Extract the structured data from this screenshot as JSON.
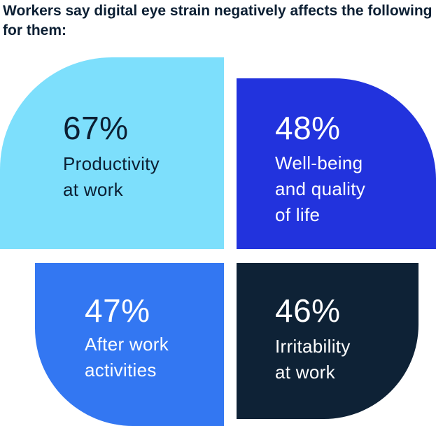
{
  "chart_data": {
    "type": "table",
    "title": "Workers say digital eye strain negatively affects the following for them:",
    "unit": "%",
    "items": [
      {
        "value": 67,
        "value_label": "67%",
        "label_lines": [
          "Productivity",
          "at work"
        ],
        "color": "#7ddffc",
        "text_color": "#0c1f33"
      },
      {
        "value": 48,
        "value_label": "48%",
        "label_lines": [
          "Well-being",
          "and quality",
          "of life"
        ],
        "color": "#2233dd",
        "text_color": "#ffffff"
      },
      {
        "value": 47,
        "value_label": "47%",
        "label_lines": [
          "After work",
          "activities"
        ],
        "color": "#3377f2",
        "text_color": "#ffffff"
      },
      {
        "value": 46,
        "value_label": "46%",
        "label_lines": [
          "Irritability",
          "at work"
        ],
        "color": "#0e2236",
        "text_color": "#ffffff"
      }
    ]
  }
}
